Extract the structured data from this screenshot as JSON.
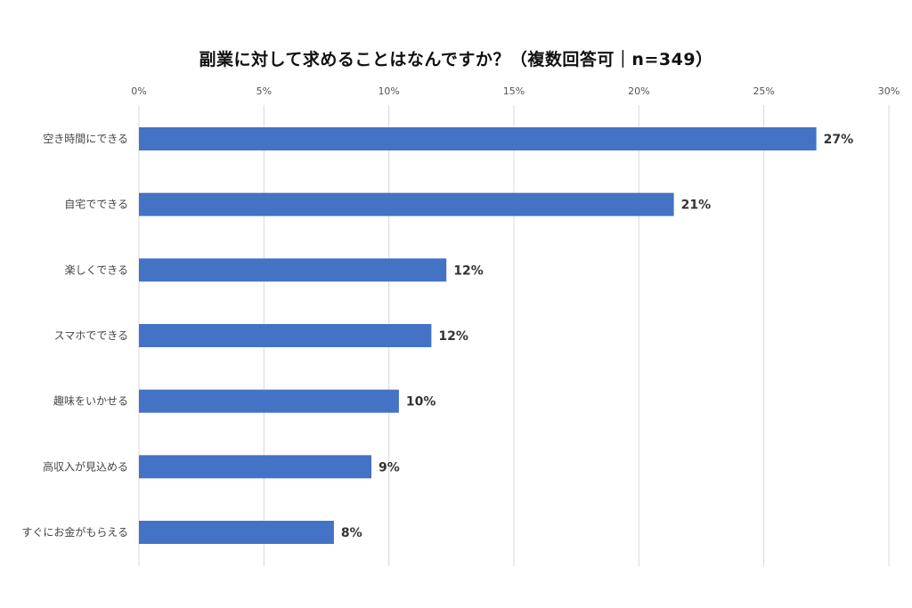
{
  "chart_data": {
    "type": "bar",
    "orientation": "horizontal",
    "title": "副業に対して求めることはなんですか？（複数回答可｜n=349）",
    "categories": [
      "空き時間にできる",
      "自宅でできる",
      "楽しくできる",
      "スマホでできる",
      "趣味をいかせる",
      "高収入が見込める",
      "すぐにお金がもらえる"
    ],
    "values": [
      27.1,
      21.4,
      12.3,
      11.7,
      10.4,
      9.3,
      7.8
    ],
    "value_labels": [
      "27%",
      "21%",
      "12%",
      "12%",
      "10%",
      "9%",
      "8%"
    ],
    "x_ticks": [
      "0%",
      "5%",
      "10%",
      "15%",
      "20%",
      "25%",
      "30%"
    ],
    "xlim": [
      0,
      30
    ],
    "x_axis_position": "top",
    "grid": true,
    "bar_color": "#4472C4",
    "grid_color": "#D9D9D9"
  }
}
